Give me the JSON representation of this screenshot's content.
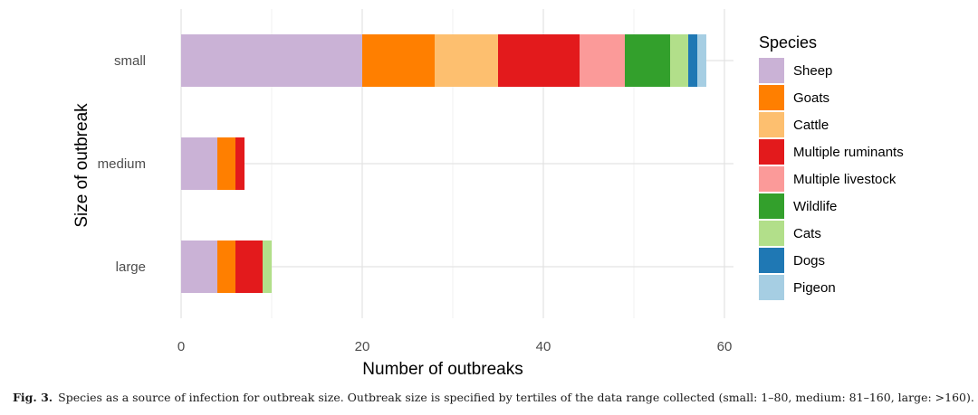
{
  "chart_data": {
    "type": "bar",
    "orientation": "horizontal",
    "stacked": true,
    "categories": [
      "small",
      "medium",
      "large"
    ],
    "series": [
      {
        "name": "Sheep",
        "color": "#cab2d6",
        "values": [
          20,
          4,
          4
        ]
      },
      {
        "name": "Goats",
        "color": "#ff7f00",
        "values": [
          8,
          2,
          2
        ]
      },
      {
        "name": "Cattle",
        "color": "#fdbf6f",
        "values": [
          7,
          0,
          0
        ]
      },
      {
        "name": "Multiple ruminants",
        "color": "#e31a1c",
        "values": [
          9,
          1,
          3
        ]
      },
      {
        "name": "Multiple livestock",
        "color": "#fb9a99",
        "values": [
          5,
          0,
          0
        ]
      },
      {
        "name": "Wildlife",
        "color": "#33a02c",
        "values": [
          5,
          0,
          0
        ]
      },
      {
        "name": "Cats",
        "color": "#b2df8a",
        "values": [
          2,
          0,
          1
        ]
      },
      {
        "name": "Dogs",
        "color": "#1f78b4",
        "values": [
          1,
          0,
          0
        ]
      },
      {
        "name": "Pigeon",
        "color": "#a6cee3",
        "values": [
          1,
          0,
          0
        ]
      }
    ],
    "xlabel": "Number of outbreaks",
    "ylabel": "Size of outbreak",
    "xlim": [
      0,
      61
    ],
    "xticks": [
      0,
      20,
      40,
      60
    ],
    "grid": true,
    "legend": {
      "title": "Species",
      "position": "right"
    }
  },
  "caption": {
    "label": "Fig. 3.",
    "text": "Species as a source of infection for outbreak size. Outbreak size is specified by tertiles of the data range collected (small: 1–80, medium: 81–160, large: >160)."
  }
}
